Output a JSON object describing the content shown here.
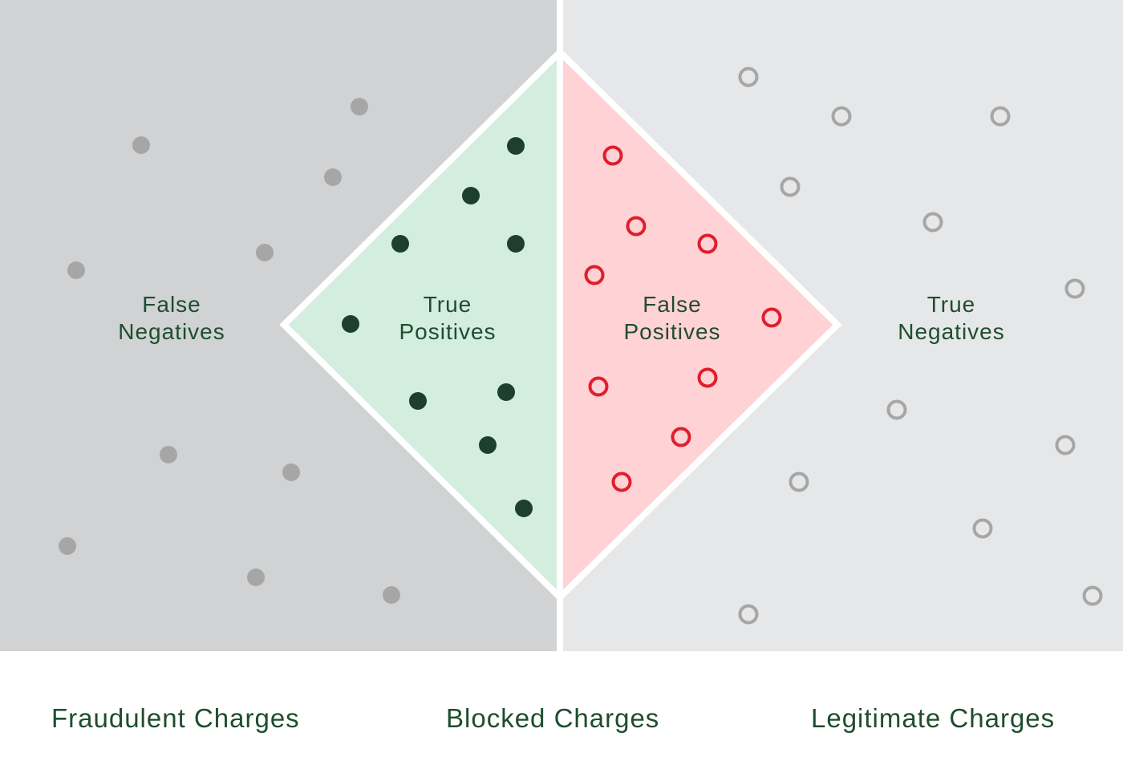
{
  "colors": {
    "fraud_bg": "#d0d2d3",
    "legit_bg": "#e6e7e8",
    "true_positive_fill": "#d3eddf",
    "false_positive_fill": "#ffd3d6",
    "divider": "#ffffff",
    "fraud_dot": "#a6a6a6",
    "true_positive_dot": "#1d3f2c",
    "false_positive_ring": "#e01e2c",
    "legit_ring": "#a6a6a6",
    "label_text": "#1f4d2e"
  },
  "regions": {
    "false_negatives": {
      "line1": "False",
      "line2": "Negatives"
    },
    "true_positives": {
      "line1": "True",
      "line2": "Positives"
    },
    "false_positives": {
      "line1": "False",
      "line2": "Positives"
    },
    "true_negatives": {
      "line1": "True",
      "line2": "Negatives"
    }
  },
  "footer": {
    "fraudulent": "Fraudulent Charges",
    "blocked": "Blocked Charges",
    "legitimate": "Legitimate Charges"
  }
}
